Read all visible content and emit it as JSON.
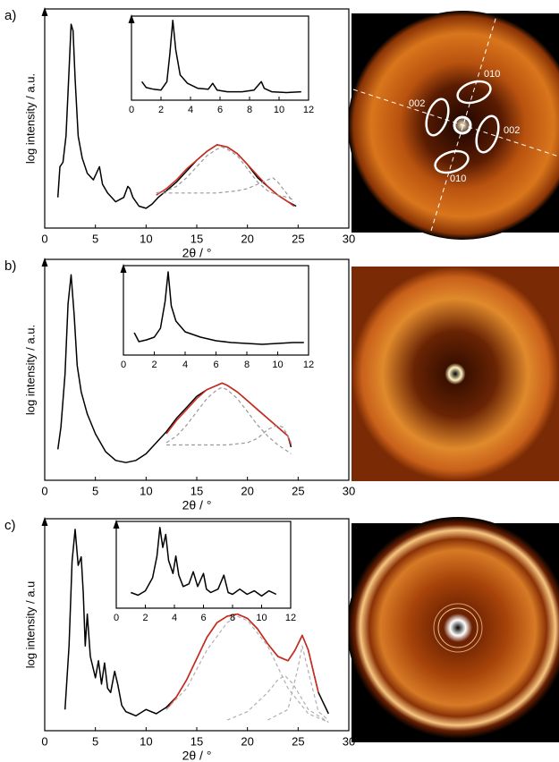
{
  "chart_data": [
    {
      "type": "line",
      "panel_label": "a)",
      "xlabel": "2θ / °",
      "ylabel": "log intensity / a.u.",
      "xlim": [
        0,
        30
      ],
      "xticks": [
        0,
        5,
        10,
        15,
        20,
        25,
        30
      ],
      "ylim": [
        0,
        100
      ],
      "series": [
        {
          "color": "#000000",
          "x": [
            1.3,
            1.5,
            1.8,
            2.1,
            2.4,
            2.6,
            2.8,
            3.0,
            3.3,
            3.7,
            4.2,
            4.8,
            5.2,
            5.4,
            5.7,
            6.2,
            7.0,
            7.8,
            8.2,
            8.4,
            8.7,
            9.3,
            10.0,
            10.6,
            11.2,
            12,
            13,
            14,
            15,
            16,
            17,
            18,
            19,
            20,
            21,
            22,
            23,
            24,
            24.8
          ],
          "values": [
            14,
            28,
            30,
            42,
            72,
            93,
            90,
            68,
            42,
            32,
            25,
            22,
            26,
            28,
            20,
            16,
            12,
            14,
            19,
            18,
            14,
            10,
            9,
            11,
            14,
            17,
            21,
            26,
            31,
            35,
            38,
            37,
            34,
            29,
            23,
            19,
            15,
            12,
            10
          ]
        },
        {
          "color": "#d42a1e",
          "x": [
            11,
            12,
            13,
            14,
            15,
            16,
            17,
            18,
            19,
            20,
            21,
            22,
            23,
            24,
            24.6
          ],
          "values": [
            15,
            18,
            22,
            27,
            31,
            35,
            38,
            37,
            34,
            29,
            24,
            19,
            15,
            12,
            10
          ]
        },
        {
          "color": "#9a9a9a",
          "dash": true,
          "x": [
            11,
            12,
            13,
            14,
            15,
            16,
            17,
            17.5,
            18,
            19,
            20,
            21,
            22,
            23,
            24,
            24.5
          ],
          "values": [
            16,
            17,
            19,
            23,
            28,
            33,
            36,
            37,
            36,
            33,
            27,
            21,
            17,
            15,
            14,
            13
          ]
        },
        {
          "color": "#9a9a9a",
          "dash": true,
          "x": [
            11,
            14,
            17,
            19,
            20,
            21,
            22,
            22.5,
            23,
            24,
            24.5
          ],
          "values": [
            16,
            16,
            16,
            17,
            18,
            20,
            22,
            23,
            21,
            15,
            12
          ]
        }
      ]
    },
    {
      "type": "line",
      "xlim": [
        0,
        12
      ],
      "xticks": [
        0,
        2,
        4,
        6,
        8,
        10,
        12
      ],
      "ylim": [
        0,
        100
      ],
      "series": [
        {
          "color": "#000000",
          "x": [
            0.7,
            1.0,
            1.5,
            2.0,
            2.4,
            2.6,
            2.8,
            3.0,
            3.3,
            3.8,
            4.5,
            5.2,
            5.5,
            5.8,
            6.5,
            7.5,
            8.3,
            8.8,
            9.0,
            9.5,
            10.5,
            11.5
          ],
          "values": [
            22,
            15,
            13,
            12,
            22,
            55,
            95,
            60,
            30,
            20,
            14,
            13,
            20,
            12,
            10,
            10,
            12,
            22,
            14,
            10,
            9,
            10
          ]
        }
      ]
    },
    {
      "type": "line",
      "panel_label": "b)",
      "xlabel": "2θ / °",
      "ylabel": "log intensity / a.u.",
      "xlim": [
        0,
        30
      ],
      "xticks": [
        0,
        5,
        10,
        15,
        20,
        25,
        30
      ],
      "ylim": [
        0,
        100
      ],
      "series": [
        {
          "color": "#000000",
          "x": [
            1.3,
            1.6,
            2.0,
            2.3,
            2.6,
            2.9,
            3.2,
            3.6,
            4.2,
            5.0,
            6,
            7,
            8,
            9,
            10,
            11,
            12,
            13,
            14,
            15,
            16,
            17,
            17.5,
            18,
            19,
            20,
            21,
            22,
            23,
            24,
            24.3
          ],
          "values": [
            14,
            24,
            48,
            80,
            93,
            75,
            52,
            40,
            30,
            21,
            13,
            9,
            8,
            9,
            12,
            17,
            22,
            28,
            33,
            38,
            41,
            43,
            44,
            43,
            40,
            36,
            32,
            28,
            24,
            20,
            15
          ]
        },
        {
          "color": "#d42a1e",
          "x": [
            12,
            13,
            14,
            15,
            16,
            17,
            17.5,
            18,
            19,
            20,
            21,
            22,
            23,
            24,
            24.3
          ],
          "values": [
            21,
            27,
            32,
            37,
            41,
            43,
            44,
            43,
            40,
            36,
            32,
            28,
            24,
            20,
            16
          ]
        },
        {
          "color": "#9a9a9a",
          "dash": true,
          "x": [
            12,
            13,
            14,
            15,
            16,
            17,
            17.5,
            18,
            19,
            20,
            21,
            22,
            23,
            24,
            24.3
          ],
          "values": [
            17,
            20,
            25,
            31,
            37,
            41,
            42,
            41,
            37,
            31,
            25,
            20,
            16,
            13,
            12
          ]
        },
        {
          "color": "#9a9a9a",
          "dash": true,
          "x": [
            12,
            15,
            18,
            20,
            21,
            22,
            23,
            23.5,
            24,
            24.3
          ],
          "values": [
            16,
            16,
            16,
            17,
            19,
            23,
            25,
            24,
            20,
            17
          ]
        }
      ]
    },
    {
      "type": "line",
      "xlim": [
        0,
        12
      ],
      "xticks": [
        0,
        2,
        4,
        6,
        8,
        10,
        12
      ],
      "ylim": [
        0,
        100
      ],
      "series": [
        {
          "color": "#000000",
          "x": [
            0.7,
            1.0,
            1.5,
            2.0,
            2.4,
            2.7,
            2.9,
            3.1,
            3.4,
            4.0,
            5.0,
            6.0,
            7.0,
            8.0,
            9.0,
            10.0,
            11.0,
            11.7
          ],
          "values": [
            25,
            15,
            17,
            20,
            30,
            60,
            93,
            55,
            38,
            26,
            20,
            16,
            14,
            13,
            12,
            13,
            14,
            14
          ]
        }
      ]
    },
    {
      "type": "line",
      "panel_label": "c)",
      "xlabel": "2θ / °",
      "ylabel": "log intensity / a.u",
      "xlim": [
        0,
        30
      ],
      "xticks": [
        0,
        5,
        10,
        15,
        20,
        25,
        30
      ],
      "ylim": [
        0,
        100
      ],
      "series": [
        {
          "color": "#000000",
          "x": [
            2.0,
            2.4,
            2.7,
            3.0,
            3.3,
            3.6,
            3.8,
            4.0,
            4.2,
            4.5,
            5.0,
            5.3,
            5.6,
            5.9,
            6.2,
            6.5,
            6.9,
            7.2,
            7.6,
            8.0,
            8.5,
            9,
            10,
            11,
            12,
            13,
            14,
            15,
            16,
            17,
            18,
            19,
            20,
            21,
            22,
            23,
            24,
            24.7,
            25.4,
            26,
            26.5,
            27,
            28
          ],
          "values": [
            10,
            40,
            80,
            95,
            78,
            82,
            65,
            40,
            55,
            35,
            25,
            33,
            22,
            32,
            20,
            18,
            28,
            22,
            12,
            9,
            8,
            7,
            10,
            8,
            11,
            16,
            24,
            34,
            44,
            51,
            54,
            55,
            53,
            48,
            41,
            35,
            33,
            38,
            45,
            38,
            28,
            18,
            8
          ]
        },
        {
          "color": "#d42a1e",
          "x": [
            12,
            13,
            14,
            15,
            16,
            17,
            18,
            19,
            20,
            21,
            22,
            23,
            24,
            24.7,
            25.4,
            26,
            26.5,
            27
          ],
          "values": [
            10,
            16,
            24,
            34,
            44,
            51,
            54,
            55,
            53,
            48,
            41,
            35,
            33,
            38,
            45,
            38,
            28,
            18
          ]
        },
        {
          "color": "#b0b0b0",
          "dash": true,
          "x": [
            12,
            14,
            16,
            18,
            19,
            20,
            22,
            24,
            26,
            28
          ],
          "values": [
            10,
            20,
            38,
            51,
            54,
            52,
            40,
            20,
            8,
            4
          ]
        },
        {
          "color": "#b0b0b0",
          "dash": true,
          "x": [
            18,
            20,
            22,
            23,
            23.7,
            24.5,
            26,
            28
          ],
          "values": [
            5,
            9,
            18,
            24,
            26,
            22,
            10,
            4
          ]
        },
        {
          "color": "#b0b0b0",
          "dash": true,
          "x": [
            22,
            24,
            25,
            25.4,
            26,
            27,
            28
          ],
          "values": [
            5,
            10,
            30,
            40,
            28,
            9,
            5
          ]
        }
      ]
    },
    {
      "type": "line",
      "xlim": [
        0,
        12
      ],
      "xticks": [
        0,
        2,
        4,
        6,
        8,
        10,
        12
      ],
      "ylim": [
        0,
        100
      ],
      "series": [
        {
          "color": "#000000",
          "x": [
            1.0,
            1.5,
            2.0,
            2.5,
            2.8,
            3.0,
            3.2,
            3.4,
            3.6,
            3.9,
            4.1,
            4.3,
            4.6,
            5.0,
            5.3,
            5.6,
            6.0,
            6.2,
            6.5,
            7.0,
            7.4,
            7.7,
            8.0,
            8.5,
            9.0,
            9.5,
            10.0,
            10.5,
            11.0
          ],
          "values": [
            18,
            15,
            20,
            35,
            60,
            93,
            70,
            85,
            55,
            40,
            60,
            38,
            25,
            28,
            42,
            25,
            40,
            22,
            18,
            22,
            38,
            18,
            16,
            22,
            16,
            20,
            14,
            20,
            16
          ]
        }
      ]
    }
  ],
  "diffraction_labels": [
    "010",
    "002",
    "002",
    "010"
  ]
}
